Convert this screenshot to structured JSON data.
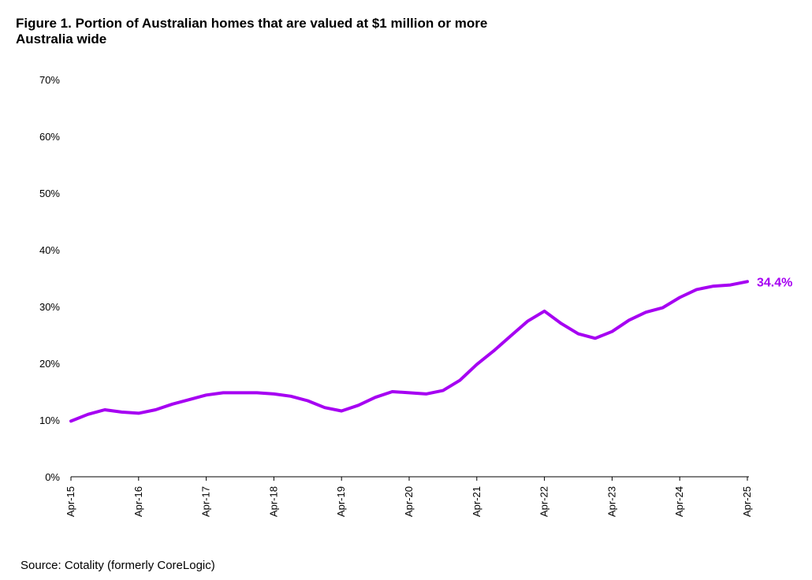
{
  "header": {
    "title_line1": "Figure 1. Portion of Australian homes that are valued at $1 million or more",
    "title_line2": "Australia wide"
  },
  "footer": {
    "source": "Source: Cotality (formerly CoreLogic)"
  },
  "chart_data": {
    "type": "line",
    "title": "Figure 1. Portion of Australian homes that are valued at $1 million or more",
    "subtitle": "Australia wide",
    "xlabel": "",
    "ylabel": "",
    "ylim": [
      0,
      70
    ],
    "y_ticks": [
      "0%",
      "10%",
      "20%",
      "30%",
      "40%",
      "50%",
      "60%",
      "70%"
    ],
    "x_ticks": [
      "Apr-15",
      "Apr-16",
      "Apr-17",
      "Apr-18",
      "Apr-19",
      "Apr-20",
      "Apr-21",
      "Apr-22",
      "Apr-23",
      "Apr-24",
      "Apr-25"
    ],
    "grid": false,
    "legend": "none",
    "color": "#a600f2",
    "end_label": "34.4%",
    "series": [
      {
        "x": [
          "Apr-15",
          "Jul-15",
          "Oct-15",
          "Jan-16",
          "Apr-16",
          "Jul-16",
          "Oct-16",
          "Jan-17",
          "Apr-17",
          "Jul-17",
          "Oct-17",
          "Jan-18",
          "Apr-18",
          "Jul-18",
          "Oct-18",
          "Jan-19",
          "Apr-19",
          "Jul-19",
          "Oct-19",
          "Jan-20",
          "Apr-20",
          "Jul-20",
          "Oct-20",
          "Jan-21",
          "Apr-21",
          "Jul-21",
          "Oct-21",
          "Jan-22",
          "Apr-22",
          "Jul-22",
          "Oct-22",
          "Jan-23",
          "Apr-23",
          "Jul-23",
          "Oct-23",
          "Jan-24",
          "Apr-24",
          "Jul-24",
          "Oct-24",
          "Jan-25",
          "Apr-25"
        ],
        "values": [
          9.8,
          11.0,
          11.8,
          11.4,
          11.2,
          11.8,
          12.8,
          13.6,
          14.4,
          14.8,
          14.8,
          14.8,
          14.6,
          14.2,
          13.4,
          12.2,
          11.6,
          12.6,
          14.0,
          15.0,
          14.8,
          14.6,
          15.2,
          17.0,
          19.8,
          22.2,
          24.8,
          27.4,
          29.2,
          27.0,
          25.2,
          24.4,
          25.6,
          27.6,
          29.0,
          29.8,
          31.6,
          33.0,
          33.6,
          33.8,
          34.4
        ]
      }
    ]
  }
}
